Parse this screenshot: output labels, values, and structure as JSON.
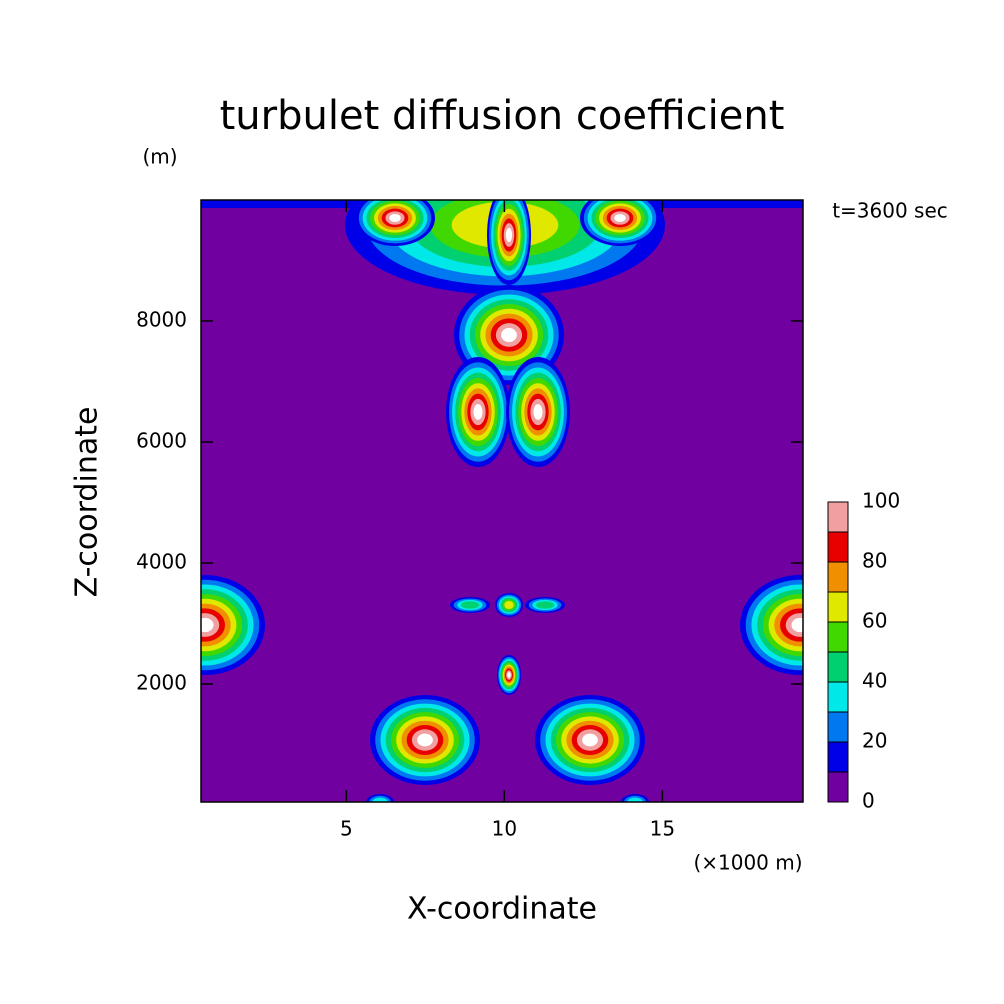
{
  "chart_data": {
    "type": "contour",
    "title": "turbulet diffusion coefficient",
    "y_unit": "(m)",
    "annotation": "t=3600 sec",
    "xlabel": "X-coordinate",
    "ylabel": "Z-coordinate",
    "x_unit": "(×1000 m)",
    "xlim": [
      0.4,
      19.45
    ],
    "xticks": [
      5,
      10,
      15
    ],
    "ylim": [
      50,
      10000
    ],
    "yticks": [
      2000,
      4000,
      6000,
      8000
    ],
    "levels": [
      0,
      10,
      20,
      30,
      40,
      50,
      60,
      70,
      80,
      90,
      100
    ],
    "colors": [
      "#7000a0",
      "#0000e8",
      "#0078f0",
      "#00e8e8",
      "#00d070",
      "#40d800",
      "#e0e800",
      "#f09000",
      "#e80000",
      "#f0a0a0"
    ],
    "colorbar_ticks": [
      0,
      20,
      40,
      60,
      80,
      100
    ]
  }
}
